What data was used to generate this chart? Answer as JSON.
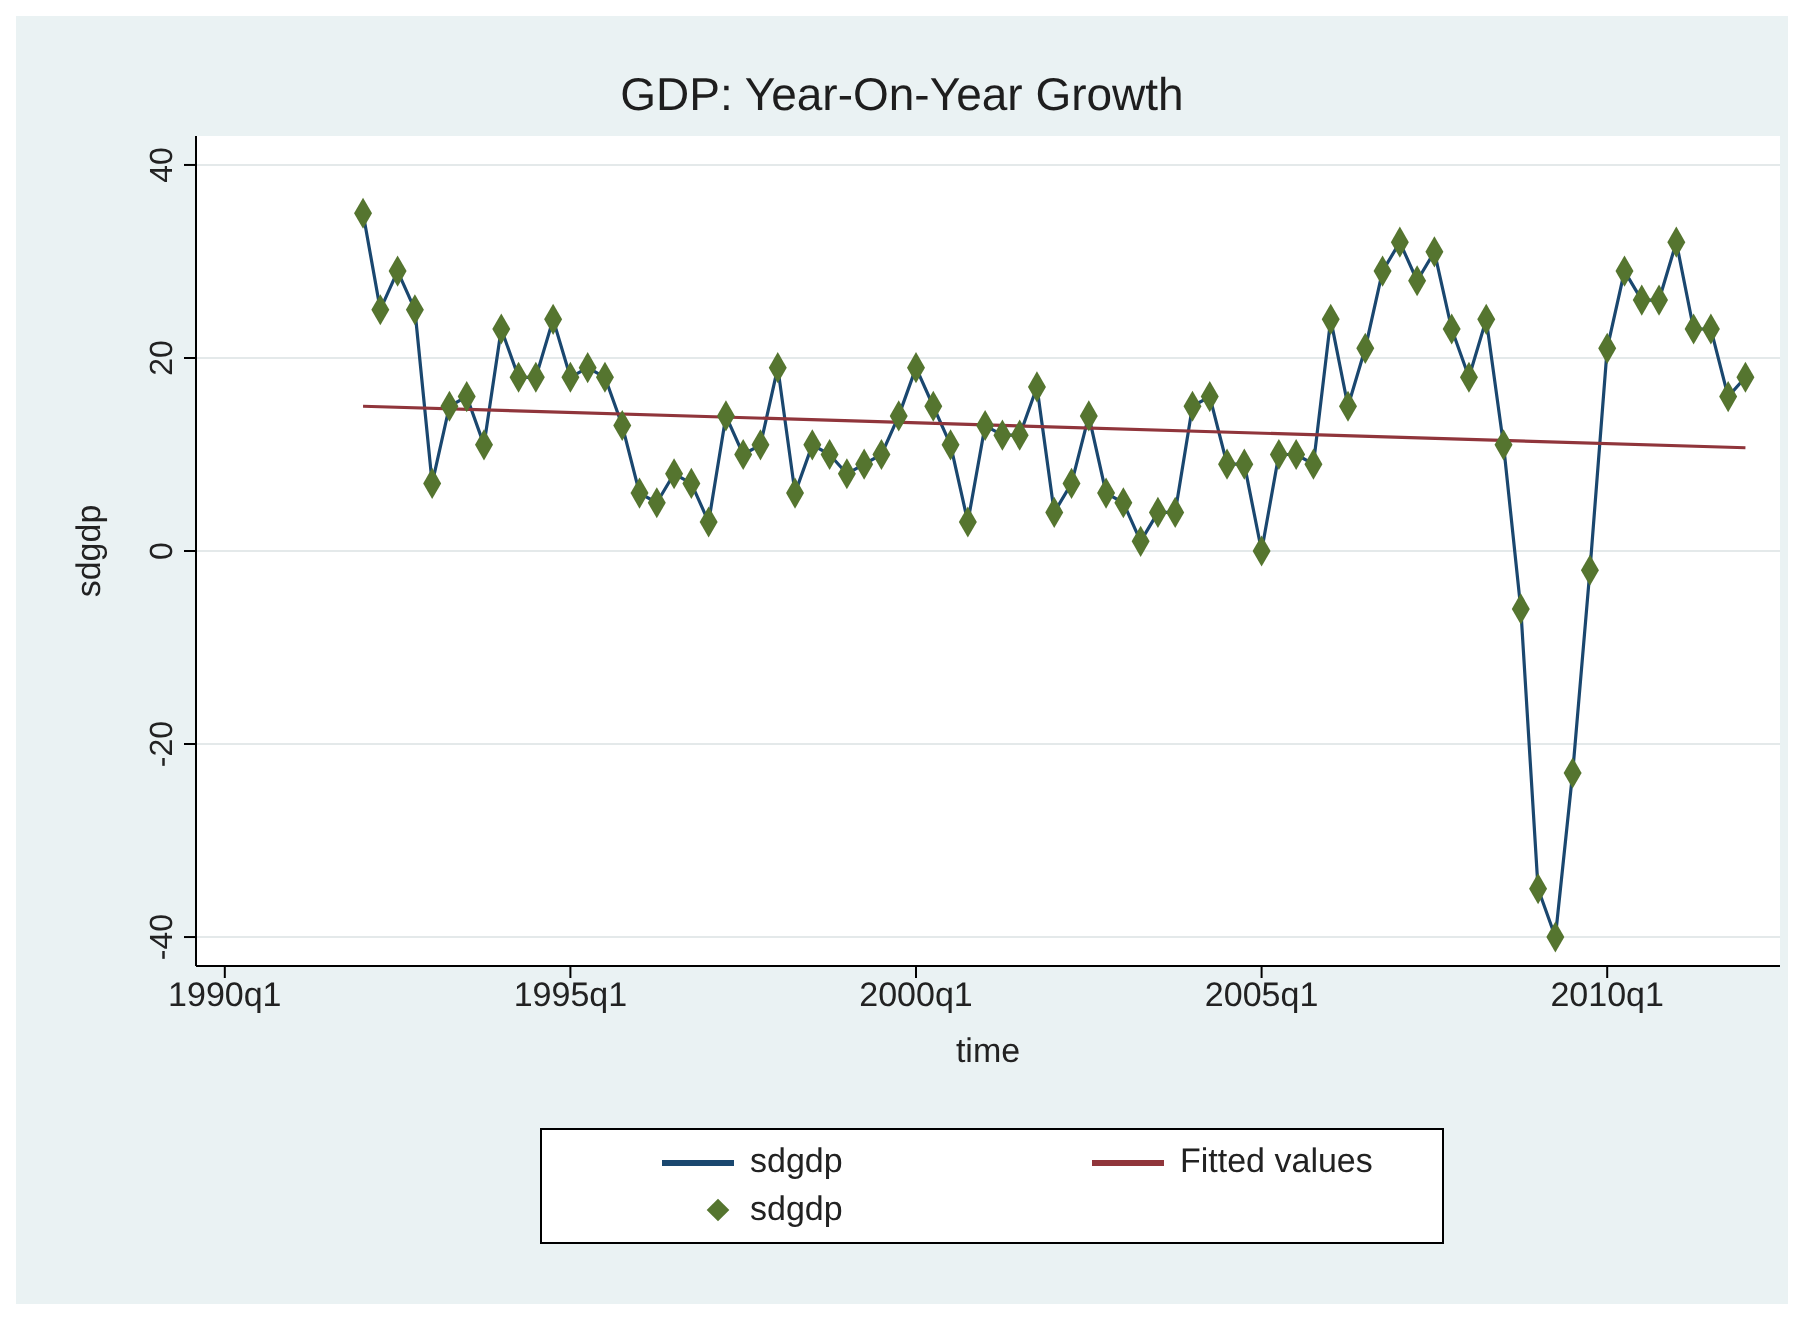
{
  "chart_data": {
    "type": "line",
    "title": "GDP: Year-On-Year Growth",
    "xlabel": "time",
    "ylabel": "sdgdp",
    "x": [
      "1992-01",
      "1992-04",
      "1992-07",
      "1992-10",
      "1993-01",
      "1993-04",
      "1993-07",
      "1993-10",
      "1994-01",
      "1994-04",
      "1994-07",
      "1994-10",
      "1995-01",
      "1995-04",
      "1995-07",
      "1995-10",
      "1996-01",
      "1996-04",
      "1996-07",
      "1996-10",
      "1997-01",
      "1997-04",
      "1997-07",
      "1997-10",
      "1998-01",
      "1998-04",
      "1998-07",
      "1998-10",
      "1999-01",
      "1999-04",
      "1999-07",
      "1999-10",
      "2000-01",
      "2000-04",
      "2000-07",
      "2000-10",
      "2001-01",
      "2001-04",
      "2001-07",
      "2001-10",
      "2002-01",
      "2002-04",
      "2002-07",
      "2002-10",
      "2003-01",
      "2003-04",
      "2003-07",
      "2003-10",
      "2004-01",
      "2004-04",
      "2004-07",
      "2004-10",
      "2005-01",
      "2005-04",
      "2005-07",
      "2005-10",
      "2006-01",
      "2006-04",
      "2006-07",
      "2006-10",
      "2007-01",
      "2007-04",
      "2007-07",
      "2007-10",
      "2008-01",
      "2008-04",
      "2008-07",
      "2008-10",
      "2009-01",
      "2009-04",
      "2009-07",
      "2009-10",
      "2010-01",
      "2010-04",
      "2010-07",
      "2010-10",
      "2011-01",
      "2011-04",
      "2011-07",
      "2011-10",
      "2012-01"
    ],
    "series": [
      {
        "name": "sdgdp",
        "type": "line",
        "color": "#1a476f",
        "marker": "none",
        "values": [
          35,
          25,
          29,
          25,
          7,
          15,
          16,
          11,
          23,
          18,
          18,
          24,
          18,
          19,
          18,
          13,
          6,
          5,
          8,
          7,
          3,
          14,
          10,
          11,
          19,
          6,
          11,
          10,
          8,
          9,
          10,
          14,
          19,
          15,
          11,
          3,
          13,
          12,
          12,
          17,
          4,
          7,
          14,
          6,
          5,
          1,
          4,
          4,
          15,
          16,
          9,
          9,
          0,
          10,
          10,
          9,
          24,
          15,
          21,
          29,
          32,
          28,
          31,
          23,
          18,
          24,
          11,
          -6,
          -35,
          -40,
          -23,
          -2,
          21,
          29,
          26,
          26,
          32,
          23,
          23,
          16,
          18
        ]
      },
      {
        "name": "Fitted values",
        "type": "line",
        "color": "#90353b",
        "marker": "none",
        "x": [
          "1992-01",
          "2012-01"
        ],
        "values": [
          15,
          10.7
        ]
      },
      {
        "name": "sdgdp",
        "type": "scatter",
        "color": "#55752f",
        "marker": "diamond",
        "values": [
          35,
          25,
          29,
          25,
          7,
          15,
          16,
          11,
          23,
          18,
          18,
          24,
          18,
          19,
          18,
          13,
          6,
          5,
          8,
          7,
          3,
          14,
          10,
          11,
          19,
          6,
          11,
          10,
          8,
          9,
          10,
          14,
          19,
          15,
          11,
          3,
          13,
          12,
          12,
          17,
          4,
          7,
          14,
          6,
          5,
          1,
          4,
          4,
          15,
          16,
          9,
          9,
          0,
          10,
          10,
          9,
          24,
          15,
          21,
          29,
          32,
          28,
          31,
          23,
          18,
          24,
          11,
          -6,
          -35,
          -40,
          -23,
          -2,
          21,
          29,
          26,
          26,
          32,
          23,
          23,
          16,
          18
        ]
      }
    ],
    "xlim": [
      "1989-08",
      "2012-07"
    ],
    "xticks": [
      {
        "value": "1990-01",
        "label": "1990q1"
      },
      {
        "value": "1995-01",
        "label": "1995q1"
      },
      {
        "value": "2000-01",
        "label": "2000q1"
      },
      {
        "value": "2005-01",
        "label": "2005q1"
      },
      {
        "value": "2010-01",
        "label": "2010q1"
      }
    ],
    "ylim": [
      -43,
      43
    ],
    "yticks": [
      -40,
      -20,
      0,
      20,
      40
    ],
    "grid": "y",
    "legend": "bottom"
  }
}
